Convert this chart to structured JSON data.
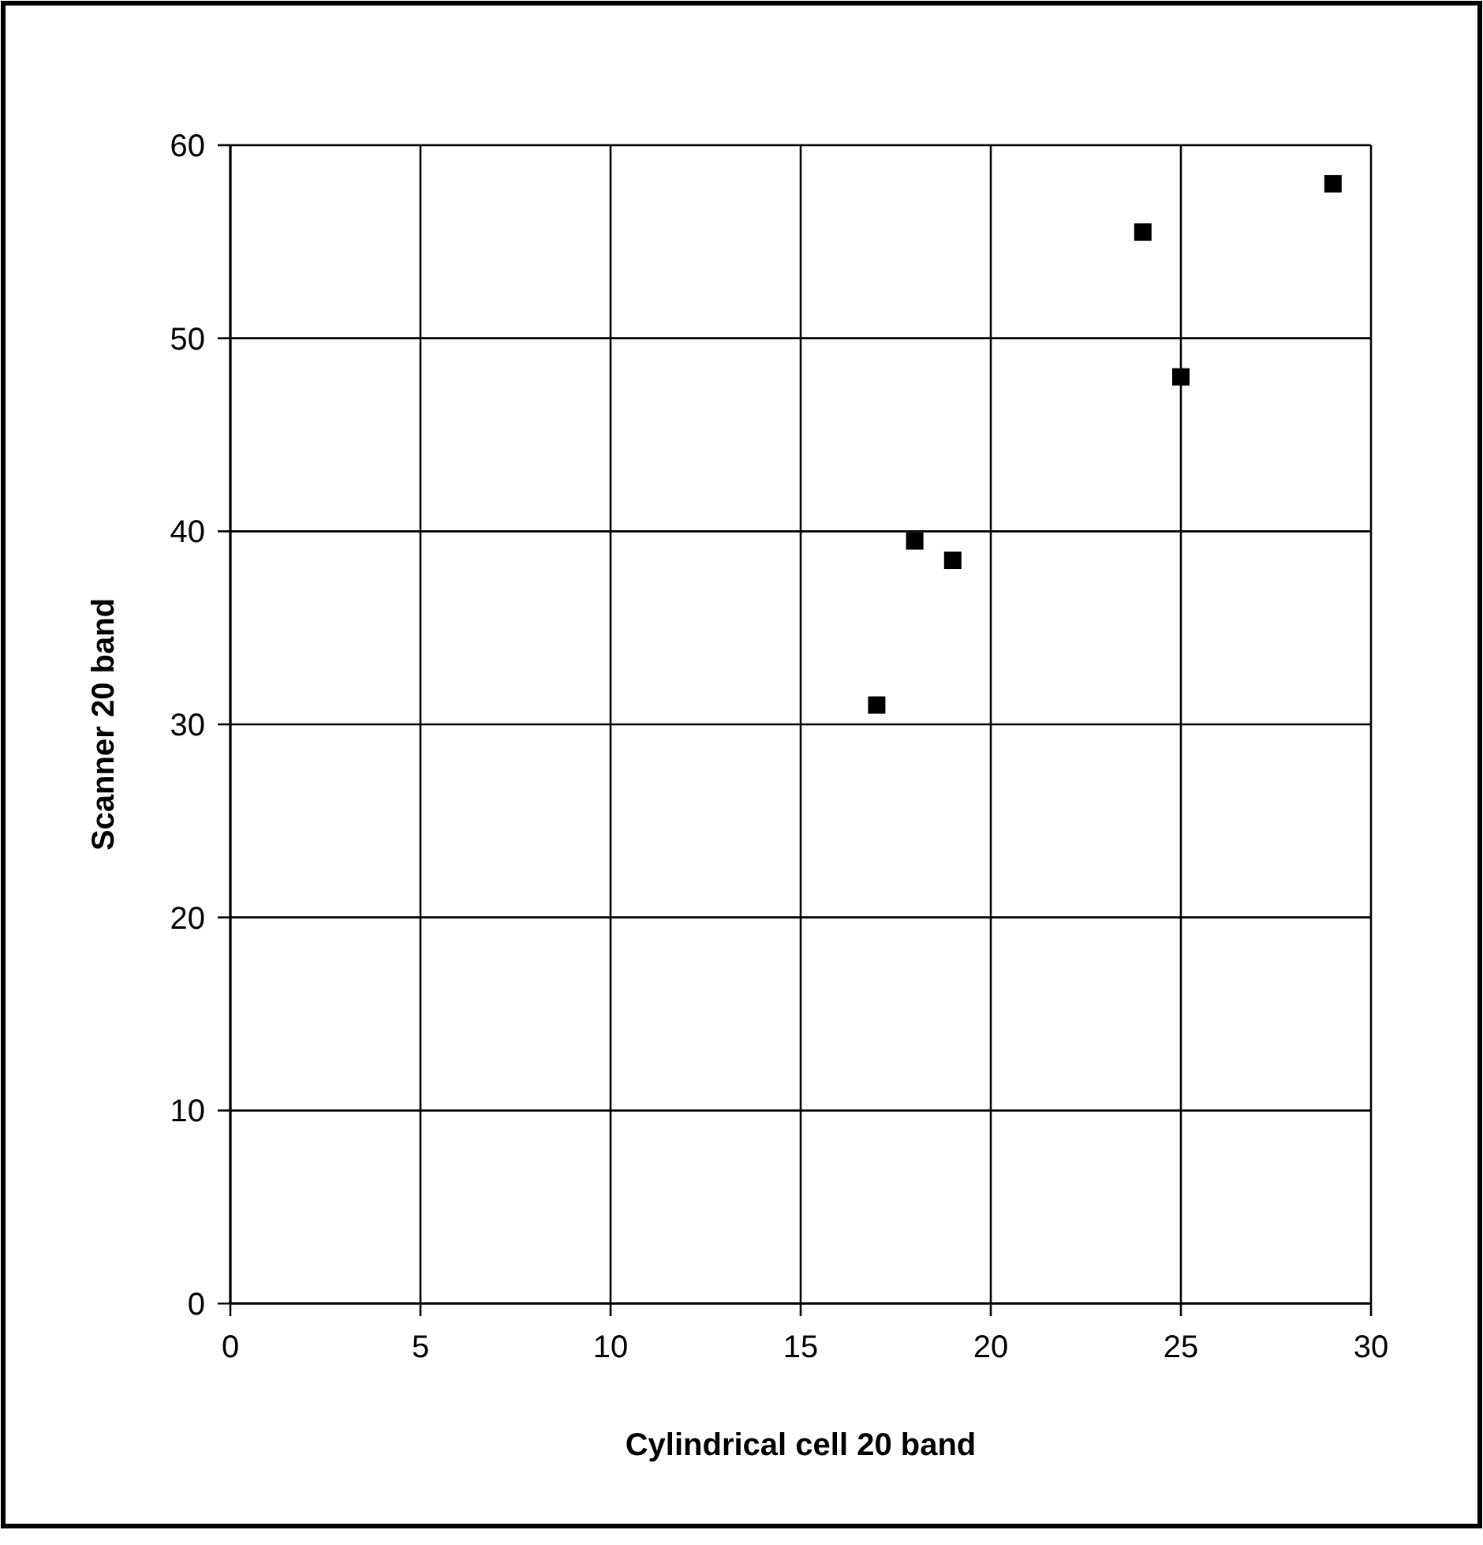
{
  "chart_data": {
    "type": "scatter",
    "xlabel": "Cylindrical cell 20 band",
    "ylabel": "Scanner 20 band",
    "x": [
      17,
      18,
      19,
      24,
      25,
      29
    ],
    "series": [
      {
        "color": "#000000",
        "values": [
          31,
          39.5,
          38.5,
          55.5,
          48,
          58
        ]
      }
    ],
    "xlim": [
      0,
      30
    ],
    "xticks": [
      0,
      5,
      10,
      15,
      20,
      25,
      30
    ],
    "ylim": [
      0,
      60
    ],
    "yticks": [
      0,
      10,
      20,
      30,
      40,
      50,
      60
    ],
    "grid": true,
    "marker": "square"
  }
}
